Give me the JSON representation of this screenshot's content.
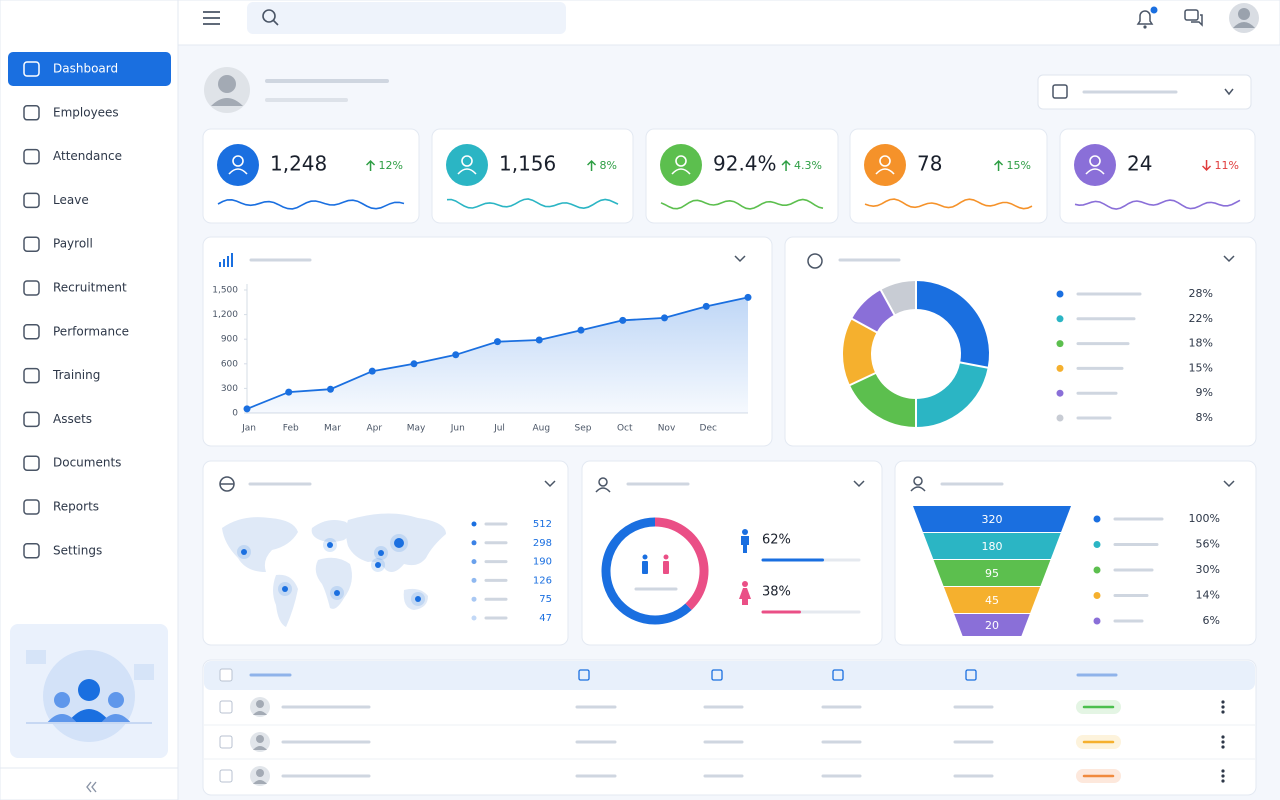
{
  "sidebar": {
    "nav": [
      "Dashboard",
      "Employees",
      "Attendance",
      "Leave",
      "Payroll",
      "Recruitment",
      "Performance",
      "Training",
      "Assets",
      "Documents",
      "Reports",
      "Settings"
    ]
  },
  "kpis": [
    {
      "value": "1,248",
      "change": "12%",
      "trend": "up",
      "color": "#1a6fe0"
    },
    {
      "value": "1,156",
      "change": "8%",
      "trend": "up",
      "color": "#2bb5c4"
    },
    {
      "value": "92.4%",
      "change": "4.3%",
      "trend": "up",
      "color": "#5cbf4e"
    },
    {
      "value": "78",
      "change": "15%",
      "trend": "up",
      "color": "#f5922a"
    },
    {
      "value": "24",
      "change": "11%",
      "trend": "down",
      "color": "#8a6fd8"
    }
  ],
  "chart_data": [
    {
      "type": "line",
      "categories": [
        "Jan",
        "Feb",
        "Mar",
        "Apr",
        "May",
        "Jun",
        "Jul",
        "Aug",
        "Sep",
        "Oct",
        "Nov",
        "Dec",
        null
      ],
      "series": [
        {
          "color": "#1a6fe0",
          "values": [
            50,
            255,
            290,
            510,
            600,
            710,
            870,
            890,
            1010,
            1130,
            1160,
            1300,
            1410
          ]
        }
      ],
      "ylim": [
        0,
        1500
      ],
      "yticks": [
        0,
        300,
        600,
        900,
        {
          "value": 1200,
          "label": "1,200"
        },
        {
          "value": 1500,
          "label": "1,500"
        }
      ],
      "grid": false
    },
    {
      "type": "donut",
      "values": [
        28,
        22,
        18,
        15,
        9,
        8
      ],
      "value_labels": [
        "28%",
        "22%",
        "18%",
        "15%",
        "9%",
        "8%"
      ],
      "colors": [
        "#1a6fe0",
        "#2bb5c4",
        "#5cbf4e",
        "#f5b02e",
        "#8a6fd8",
        "#c8ccd4"
      ]
    },
    {
      "type": "gender",
      "values": [
        62,
        38
      ],
      "value_labels": [
        "62%",
        "38%"
      ],
      "colors": [
        "#1a6fe0",
        "#ea4f86"
      ]
    }
  ],
  "regions": {
    "values": [
      "512",
      "298",
      "190",
      "126",
      "75",
      "47"
    ],
    "colors": [
      "#1a6fe0",
      "#3b82e6",
      "#6aa1ec",
      "#8fb8f0",
      "#a9c8f3",
      "#c2d8f6"
    ]
  },
  "funnel": {
    "stages": [
      {
        "value": "320",
        "percent": "100%",
        "color": "#1a6fe0"
      },
      {
        "value": "180",
        "percent": "56%",
        "color": "#2bb5c4"
      },
      {
        "value": "95",
        "percent": "30%",
        "color": "#5cbf4e"
      },
      {
        "value": "45",
        "percent": "14%",
        "color": "#f5b02e"
      },
      {
        "value": "20",
        "percent": "6%",
        "color": "#8a6fd8"
      }
    ]
  }
}
